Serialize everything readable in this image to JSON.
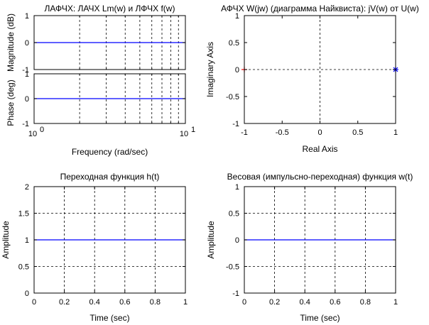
{
  "colors": {
    "axis": "#000000",
    "grid": "#000000",
    "data_line": "#0000ff",
    "nyquist_start_marker": "#ff0000",
    "nyquist_end_marker": "#0000ff"
  },
  "chart_data": [
    {
      "id": "mag",
      "type": "line",
      "title": "ЛАФЧХ: ЛАЧХ Lm(w) и ЛФЧХ f(w)",
      "xlabel": "",
      "ylabel": "Magnitude (dB)",
      "xscale": "log",
      "xlim": [
        1,
        10
      ],
      "ylim": [
        -1,
        1
      ],
      "yticks": [
        -1,
        0,
        1
      ],
      "ytick_labels": [
        "-1",
        "0",
        "1"
      ],
      "xticks": [],
      "xtick_labels": [],
      "xgrid_log_minor": true,
      "ygrid": [
        0
      ],
      "grid": true,
      "series": [
        {
          "x": [
            1,
            10
          ],
          "values": [
            0,
            0
          ]
        }
      ]
    },
    {
      "id": "phase",
      "type": "line",
      "title": "",
      "xlabel": "Frequency  (rad/sec)",
      "ylabel": "Phase (deg)",
      "xscale": "log",
      "xlim": [
        1,
        10
      ],
      "ylim": [
        -1,
        1
      ],
      "yticks": [
        -1,
        0,
        1
      ],
      "ytick_labels": [
        "-1",
        "0",
        "1"
      ],
      "xticks": [
        1,
        10
      ],
      "xtick_labels": [
        {
          "base": "10",
          "exp": "0"
        },
        {
          "base": "10",
          "exp": "1"
        }
      ],
      "xgrid_log_minor": true,
      "ygrid": [
        0
      ],
      "grid": true,
      "series": [
        {
          "x": [
            1,
            10
          ],
          "values": [
            0,
            0
          ]
        }
      ]
    },
    {
      "id": "nyquist",
      "type": "line",
      "title": "АФЧХ W(jw) (диаграмма Найквиста): jV(w) от U(w)",
      "xlabel": "Real Axis",
      "ylabel": "Imaginary Axis",
      "xlim": [
        -1,
        1
      ],
      "ylim": [
        -1,
        1
      ],
      "xticks": [
        -1,
        -0.5,
        0,
        0.5,
        1
      ],
      "xtick_labels": [
        "-1",
        "-0.5",
        "0",
        "0.5",
        "1"
      ],
      "yticks": [
        -1,
        -0.5,
        0,
        0.5,
        1
      ],
      "ytick_labels": [
        "-1",
        "-0.5",
        "0",
        "0.5",
        "1"
      ],
      "xgrid": [
        0
      ],
      "ygrid": [
        0
      ],
      "grid": true,
      "markers": [
        {
          "x": -1,
          "y": 0,
          "symbol": "+",
          "color": "#ff0000"
        },
        {
          "x": 1,
          "y": 0,
          "symbol": "*",
          "color": "#0000ff"
        }
      ]
    },
    {
      "id": "step",
      "type": "line",
      "title": "Переходная функция h(t)",
      "xlabel": "Time (sec)",
      "ylabel": "Amplitude",
      "xlim": [
        0,
        1
      ],
      "ylim": [
        0,
        2
      ],
      "xticks": [
        0,
        0.2,
        0.4,
        0.6,
        0.8,
        1
      ],
      "xtick_labels": [
        "0",
        "0.2",
        "0.4",
        "0.6",
        "0.8",
        "1"
      ],
      "yticks": [
        0,
        0.5,
        1,
        1.5,
        2
      ],
      "ytick_labels": [
        "0",
        "0.5",
        "1",
        "1.5",
        "2"
      ],
      "xgrid": [
        0.2,
        0.4,
        0.6,
        0.8
      ],
      "ygrid": [
        0.5,
        1,
        1.5
      ],
      "grid": true,
      "series": [
        {
          "x": [
            0,
            1
          ],
          "values": [
            1,
            1
          ]
        }
      ]
    },
    {
      "id": "impulse",
      "type": "line",
      "title": "Весовая (импульсно-переходная) функция w(t)",
      "xlabel": "Time (sec)",
      "ylabel": "Amplitude",
      "xlim": [
        0,
        1
      ],
      "ylim": [
        -1,
        1
      ],
      "xticks": [
        0,
        0.2,
        0.4,
        0.6,
        0.8,
        1
      ],
      "xtick_labels": [
        "0",
        "0.2",
        "0.4",
        "0.6",
        "0.8",
        "1"
      ],
      "yticks": [
        -1,
        -0.5,
        0,
        0.5,
        1
      ],
      "ytick_labels": [
        "-1",
        "-0.5",
        "0",
        "0.5",
        "1"
      ],
      "xgrid": [
        0.2,
        0.4,
        0.6,
        0.8
      ],
      "ygrid": [
        -0.5,
        0,
        0.5
      ],
      "grid": true,
      "series": [
        {
          "x": [
            0,
            1
          ],
          "values": [
            0,
            0
          ]
        }
      ]
    }
  ]
}
